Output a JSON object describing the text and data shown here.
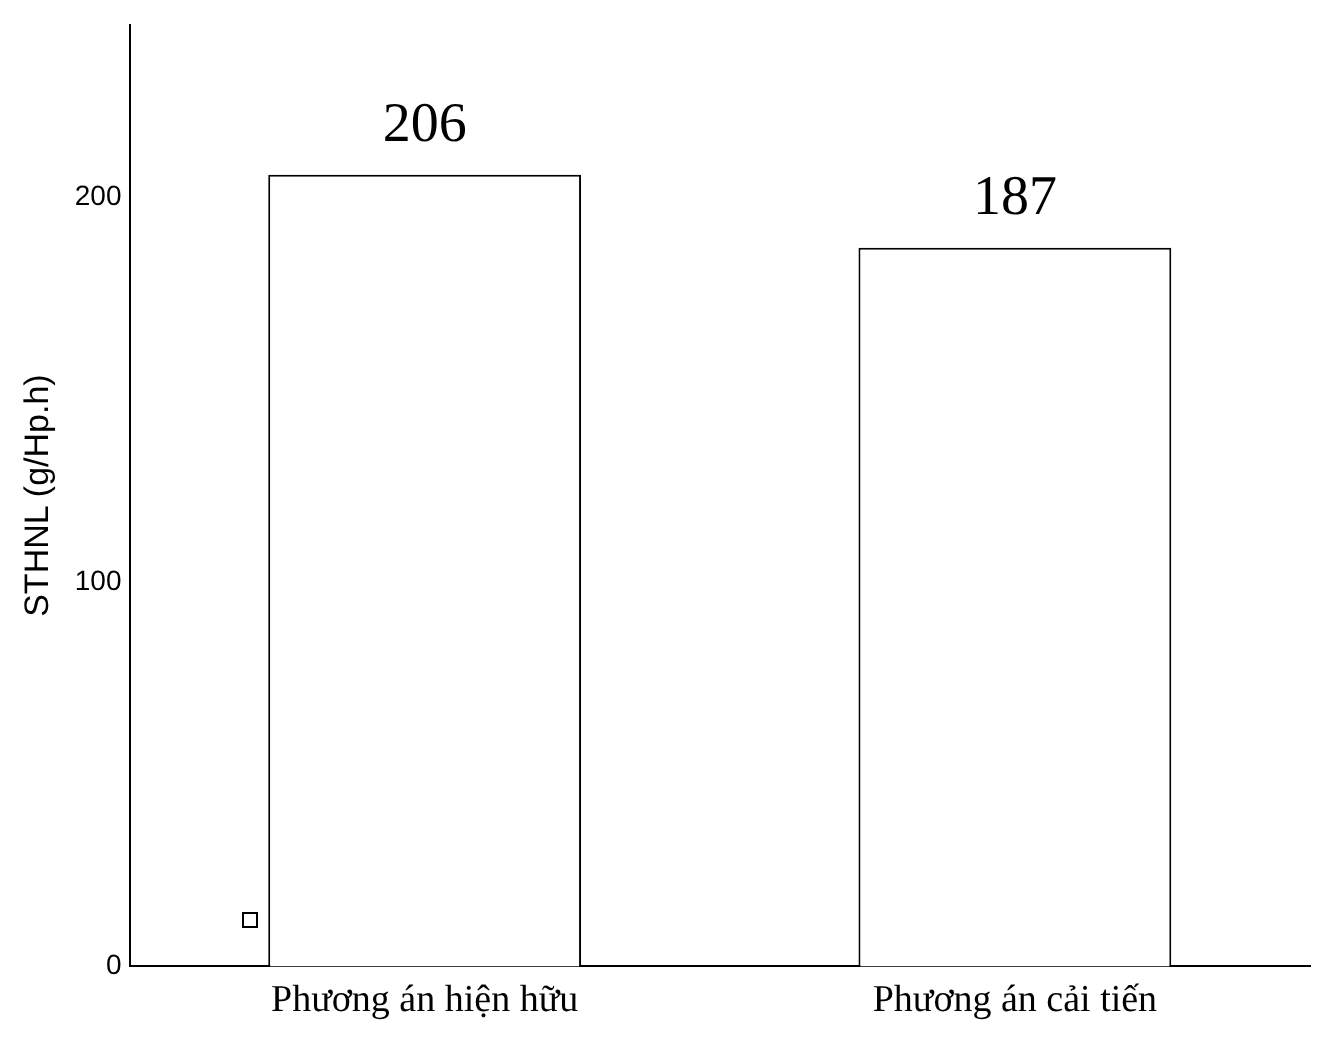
{
  "chart_data": {
    "type": "bar",
    "ylabel": "STHNL (g/Hp.h)",
    "categories": [
      "Phương án hiện hữu",
      "Phương án cải tiến"
    ],
    "values": [
      206,
      187
    ],
    "color": "#ffffff",
    "ylim": [
      0,
      245
    ],
    "yticks": [
      0,
      100,
      200
    ],
    "grid": false,
    "legend": false,
    "data_labels": true
  }
}
